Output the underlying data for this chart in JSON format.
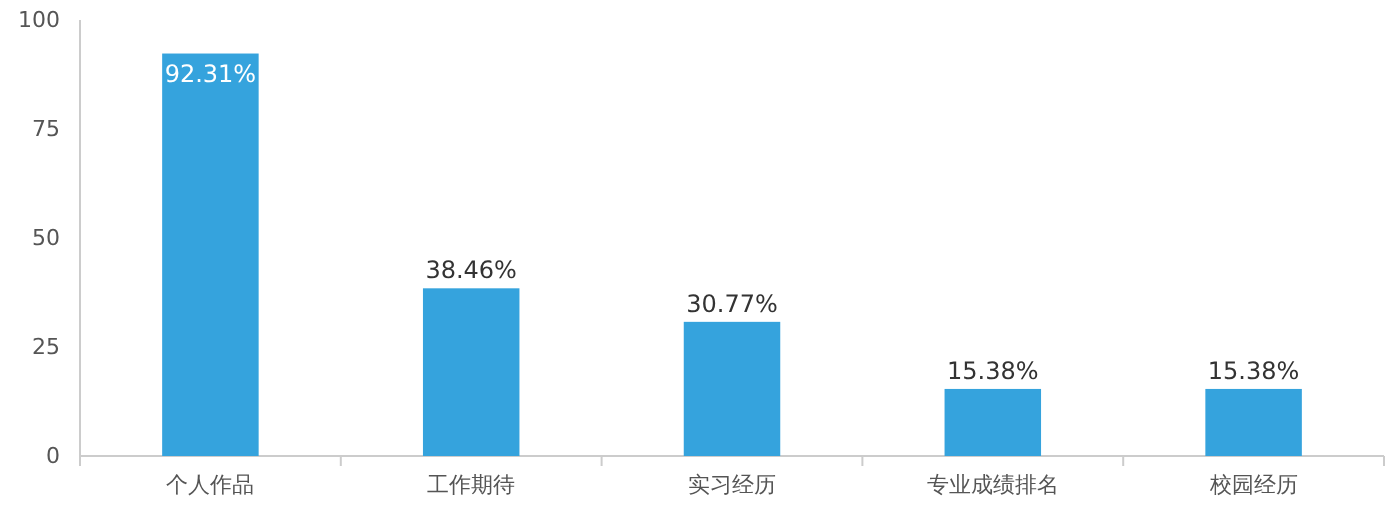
{
  "chart_data": {
    "type": "bar",
    "categories": [
      "个人作品",
      "工作期待",
      "实习经历",
      "专业成绩排名",
      "校园经历"
    ],
    "values": [
      92.31,
      38.46,
      30.77,
      15.38,
      15.38
    ],
    "value_labels": [
      "92.31%",
      "38.46%",
      "30.77%",
      "15.38%",
      "15.38%"
    ],
    "color": "#35a3dd",
    "ylim": [
      0,
      100
    ],
    "yticks": [
      0,
      25,
      50,
      75,
      100
    ]
  }
}
